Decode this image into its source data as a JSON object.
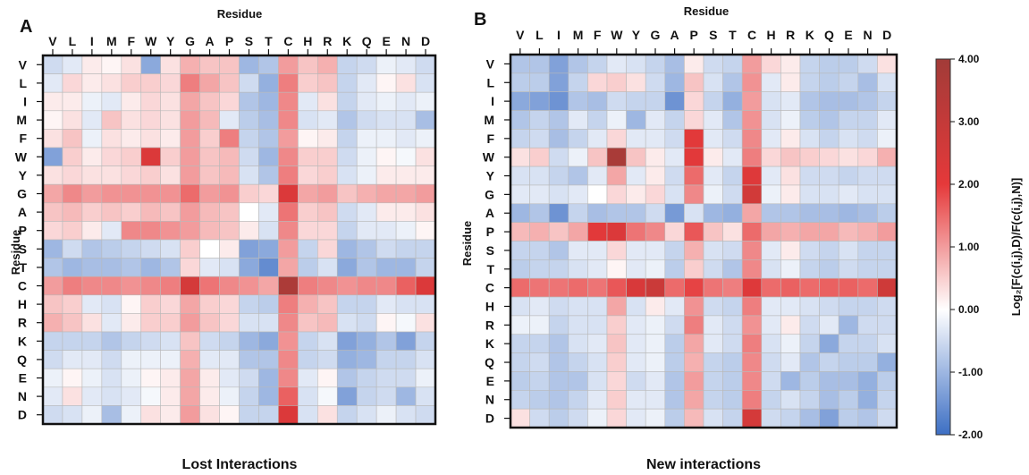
{
  "chart_data": [
    {
      "type": "heatmap",
      "panel_letter": "A",
      "title": "Lost Interactions",
      "xlabel": "Residue",
      "ylabel": "Residue",
      "residues": [
        "V",
        "L",
        "I",
        "M",
        "F",
        "W",
        "Y",
        "G",
        "A",
        "P",
        "S",
        "T",
        "C",
        "H",
        "R",
        "K",
        "Q",
        "E",
        "N",
        "D"
      ],
      "values": [
        [
          -0.5,
          -0.3,
          0.2,
          0.1,
          0.3,
          -1.2,
          0.3,
          0.8,
          0.6,
          0.6,
          -1.0,
          -0.8,
          1.0,
          0.6,
          0.8,
          -0.6,
          -0.5,
          -0.2,
          -0.3,
          -0.5
        ],
        [
          -0.3,
          0.4,
          0.2,
          0.3,
          0.5,
          0.5,
          0.4,
          1.3,
          0.9,
          0.6,
          -0.5,
          -1.1,
          1.3,
          0.5,
          0.6,
          -0.6,
          -0.3,
          0.1,
          0.3,
          -0.4
        ],
        [
          0.2,
          0.2,
          -0.2,
          -0.3,
          0.2,
          0.4,
          0.3,
          0.9,
          0.6,
          0.4,
          -0.8,
          -1.0,
          1.2,
          -0.3,
          0.3,
          -0.6,
          -0.3,
          -0.2,
          -0.3,
          -0.2
        ],
        [
          0.1,
          0.3,
          -0.3,
          0.6,
          0.3,
          0.4,
          0.3,
          1.0,
          0.7,
          -0.3,
          -0.7,
          -0.9,
          1.2,
          -0.4,
          -0.3,
          -0.8,
          -0.5,
          -0.4,
          -0.4,
          -0.9
        ],
        [
          0.3,
          0.6,
          -0.2,
          0.3,
          0.2,
          0.3,
          0.2,
          1.0,
          0.5,
          1.3,
          -0.6,
          -0.8,
          1.0,
          0.1,
          0.2,
          -0.6,
          -0.2,
          -0.2,
          -0.3,
          -0.2
        ],
        [
          -1.3,
          0.5,
          0.2,
          0.4,
          0.5,
          2.3,
          0.5,
          1.0,
          0.6,
          0.7,
          -0.5,
          -1.0,
          1.2,
          0.5,
          0.5,
          -0.5,
          -0.2,
          0.1,
          -0.1,
          0.3
        ],
        [
          0.3,
          0.4,
          0.3,
          0.3,
          0.4,
          0.5,
          0.3,
          1.0,
          0.6,
          0.7,
          -0.4,
          -0.8,
          1.3,
          0.4,
          0.5,
          -0.4,
          -0.2,
          0.2,
          0.2,
          0.2
        ],
        [
          0.9,
          1.2,
          1.0,
          1.1,
          1.1,
          1.1,
          1.1,
          1.5,
          1.0,
          1.1,
          0.5,
          0.4,
          2.3,
          0.9,
          1.0,
          0.6,
          0.8,
          0.9,
          0.9,
          1.0
        ],
        [
          0.6,
          0.7,
          0.5,
          0.6,
          0.5,
          0.7,
          0.6,
          1.0,
          0.7,
          0.6,
          0.0,
          -0.3,
          1.4,
          0.5,
          0.6,
          -0.5,
          -0.3,
          0.2,
          0.2,
          0.3
        ],
        [
          0.4,
          0.5,
          0.2,
          -0.3,
          1.2,
          1.2,
          1.1,
          1.0,
          0.7,
          0.6,
          0.2,
          -0.4,
          1.2,
          0.4,
          0.4,
          -0.6,
          -0.3,
          -0.3,
          -0.2,
          0.1
        ],
        [
          -1.0,
          -0.5,
          -0.8,
          -0.7,
          -0.6,
          -0.5,
          -0.4,
          0.5,
          0.0,
          0.2,
          -1.3,
          -1.2,
          1.0,
          -0.6,
          0.4,
          -1.0,
          -0.8,
          -0.5,
          -0.6,
          -0.6
        ],
        [
          -0.8,
          -1.0,
          -0.9,
          -0.9,
          -0.8,
          -1.0,
          -0.8,
          0.4,
          -0.3,
          -0.4,
          -1.2,
          -1.6,
          0.9,
          -0.7,
          -0.4,
          -1.2,
          -0.8,
          -1.0,
          -1.0,
          -0.6
        ],
        [
          1.0,
          1.3,
          1.2,
          1.2,
          1.1,
          1.2,
          1.3,
          2.5,
          1.4,
          1.2,
          1.1,
          0.9,
          3.7,
          1.3,
          1.2,
          1.1,
          1.2,
          1.2,
          1.6,
          2.3
        ],
        [
          0.6,
          0.5,
          -0.3,
          -0.4,
          0.1,
          0.5,
          0.4,
          0.9,
          0.5,
          0.4,
          -0.6,
          -0.7,
          1.3,
          0.8,
          0.6,
          -0.6,
          -0.6,
          -0.3,
          -0.4,
          -0.4
        ],
        [
          0.8,
          0.6,
          0.3,
          -0.3,
          0.2,
          0.5,
          0.5,
          1.0,
          0.6,
          0.4,
          -0.4,
          -0.4,
          1.2,
          0.6,
          0.7,
          -0.4,
          -0.5,
          0.1,
          -0.1,
          0.3
        ],
        [
          -0.6,
          -0.6,
          -0.6,
          -0.8,
          -0.6,
          -0.5,
          -0.4,
          0.6,
          -0.5,
          -0.6,
          -1.0,
          -1.2,
          1.1,
          -0.6,
          -0.4,
          -1.3,
          -1.1,
          -0.8,
          -1.3,
          -0.6
        ],
        [
          -0.5,
          -0.3,
          -0.3,
          -0.5,
          -0.2,
          -0.2,
          -0.2,
          0.8,
          -0.3,
          -0.3,
          -0.8,
          -0.8,
          1.2,
          -0.6,
          -0.5,
          -1.1,
          -1.0,
          -0.6,
          -0.6,
          -0.4
        ],
        [
          -0.2,
          0.1,
          -0.2,
          -0.4,
          -0.2,
          0.1,
          0.2,
          0.9,
          0.2,
          -0.3,
          -0.5,
          -1.0,
          1.2,
          -0.3,
          0.1,
          -0.8,
          -0.6,
          -0.5,
          -0.5,
          -0.2
        ],
        [
          -0.3,
          0.3,
          -0.3,
          -0.4,
          -0.3,
          -0.1,
          0.2,
          0.9,
          0.2,
          -0.2,
          -0.6,
          -1.0,
          1.6,
          -0.4,
          -0.1,
          -1.3,
          -0.6,
          -0.5,
          -1.0,
          -0.4
        ],
        [
          -0.5,
          -0.4,
          -0.2,
          -0.9,
          -0.2,
          0.3,
          0.2,
          1.0,
          0.3,
          0.1,
          -0.6,
          -0.6,
          2.3,
          -0.4,
          0.3,
          -0.6,
          -0.4,
          -0.2,
          -0.4,
          -0.5
        ]
      ]
    },
    {
      "type": "heatmap",
      "panel_letter": "B",
      "title": "New interactions",
      "xlabel": "Residue",
      "ylabel": "Residue",
      "residues": [
        "V",
        "L",
        "I",
        "M",
        "F",
        "W",
        "Y",
        "G",
        "A",
        "P",
        "S",
        "T",
        "C",
        "H",
        "R",
        "K",
        "Q",
        "E",
        "N",
        "D"
      ],
      "values": [
        [
          -0.8,
          -0.8,
          -1.3,
          -0.8,
          -0.6,
          -0.3,
          -0.4,
          -0.6,
          -0.9,
          0.2,
          -0.5,
          -0.6,
          1.0,
          0.4,
          0.2,
          -0.6,
          -0.7,
          -0.7,
          -0.5,
          0.3
        ],
        [
          -0.7,
          -0.7,
          -1.3,
          -0.6,
          0.4,
          0.5,
          0.3,
          -0.5,
          -1.0,
          0.6,
          -0.4,
          -0.8,
          1.1,
          -0.3,
          0.2,
          -0.6,
          -0.7,
          -0.6,
          -0.9,
          -0.4
        ],
        [
          -1.2,
          -1.3,
          -1.5,
          -0.8,
          -0.9,
          -0.5,
          -0.6,
          -0.6,
          -1.5,
          0.4,
          -0.6,
          -1.1,
          1.0,
          -0.4,
          -0.3,
          -0.8,
          -0.9,
          -0.9,
          -0.8,
          -0.6
        ],
        [
          -0.8,
          -0.6,
          -0.8,
          -0.3,
          -0.6,
          -0.2,
          -1.0,
          -0.3,
          -0.6,
          0.4,
          -0.3,
          -0.8,
          1.1,
          -0.4,
          -0.2,
          -0.7,
          -0.8,
          -0.6,
          -0.6,
          -0.3
        ],
        [
          -0.6,
          -0.5,
          -0.9,
          -0.6,
          -0.3,
          0.4,
          -0.3,
          -0.3,
          -0.5,
          2.1,
          -0.3,
          -0.5,
          1.2,
          -0.3,
          0.2,
          -0.4,
          -0.6,
          -0.4,
          -0.5,
          -0.2
        ],
        [
          0.3,
          0.5,
          -0.5,
          -0.2,
          0.6,
          3.8,
          0.6,
          0.2,
          -0.3,
          2.1,
          0.2,
          -0.3,
          1.3,
          0.4,
          0.6,
          0.5,
          0.4,
          0.3,
          0.4,
          0.8
        ],
        [
          -0.4,
          -0.4,
          -0.6,
          -0.8,
          -0.3,
          0.9,
          -0.3,
          0.2,
          -0.5,
          1.5,
          -0.3,
          -0.6,
          2.2,
          -0.3,
          0.3,
          -0.5,
          -0.5,
          -0.6,
          -0.5,
          -0.5
        ],
        [
          -0.3,
          -0.3,
          -0.4,
          -0.3,
          0.0,
          0.4,
          0.2,
          0.4,
          -0.4,
          1.2,
          -0.2,
          -0.5,
          2.6,
          -0.2,
          0.2,
          -0.4,
          -0.4,
          -0.3,
          -0.4,
          -0.4
        ],
        [
          -1.0,
          -0.8,
          -1.5,
          -0.6,
          -0.9,
          -0.8,
          -0.8,
          -0.5,
          -1.4,
          -0.4,
          -1.0,
          -1.1,
          0.9,
          -0.8,
          -0.8,
          -0.9,
          -0.9,
          -1.0,
          -0.9,
          -0.7
        ],
        [
          0.7,
          0.8,
          0.6,
          0.9,
          2.1,
          2.3,
          1.4,
          1.2,
          0.4,
          1.7,
          0.6,
          0.3,
          1.5,
          0.9,
          0.8,
          0.9,
          0.9,
          0.7,
          0.8,
          1.0
        ],
        [
          -0.6,
          -0.6,
          -0.8,
          -0.3,
          -0.3,
          0.4,
          -0.3,
          -0.3,
          -0.6,
          0.8,
          -0.4,
          -0.5,
          1.2,
          -0.3,
          0.2,
          -0.5,
          -0.6,
          -0.4,
          -0.6,
          -0.6
        ],
        [
          -0.7,
          -0.6,
          -0.6,
          -0.4,
          -0.3,
          0.1,
          -0.3,
          -0.2,
          -0.7,
          0.5,
          -0.5,
          -0.8,
          1.2,
          -0.4,
          -0.2,
          -0.6,
          -0.7,
          -0.5,
          -0.6,
          -0.6
        ],
        [
          1.5,
          1.4,
          1.4,
          1.5,
          1.4,
          1.7,
          2.4,
          2.8,
          1.5,
          1.9,
          1.4,
          1.3,
          2.2,
          1.5,
          1.6,
          1.5,
          1.6,
          1.6,
          1.5,
          2.7
        ],
        [
          -0.4,
          -0.3,
          -0.5,
          -0.4,
          -0.4,
          0.9,
          -0.4,
          0.2,
          -0.3,
          1.1,
          -0.5,
          -0.6,
          1.3,
          -0.3,
          -0.3,
          -0.4,
          -0.5,
          -0.6,
          -0.6,
          -0.5
        ],
        [
          -0.2,
          -0.2,
          -0.6,
          -0.4,
          -0.4,
          0.5,
          -0.3,
          -0.2,
          -0.5,
          1.3,
          -0.3,
          -0.5,
          1.1,
          -0.3,
          0.2,
          -0.5,
          -0.3,
          -1.0,
          -0.5,
          -0.5
        ],
        [
          -0.6,
          -0.6,
          -0.8,
          -0.4,
          -0.3,
          0.6,
          -0.3,
          -0.2,
          -0.7,
          0.9,
          -0.3,
          -0.5,
          1.3,
          -0.4,
          -0.2,
          -0.6,
          -1.2,
          -0.6,
          -0.6,
          -0.4
        ],
        [
          -0.6,
          -0.5,
          -0.8,
          -0.6,
          -0.4,
          0.5,
          -0.3,
          -0.2,
          -0.7,
          0.8,
          -0.6,
          -0.7,
          1.2,
          -0.5,
          -0.3,
          -0.8,
          -0.6,
          -0.7,
          -0.7,
          -1.1
        ],
        [
          -0.7,
          -0.6,
          -0.8,
          -0.8,
          -0.4,
          0.4,
          -0.5,
          -0.3,
          -0.8,
          1.0,
          -0.6,
          -0.7,
          1.2,
          -0.5,
          -1.0,
          -0.7,
          -0.9,
          -0.9,
          -1.1,
          -0.7
        ],
        [
          -0.6,
          -0.7,
          -0.8,
          -0.6,
          -0.3,
          0.5,
          -0.3,
          -0.3,
          -0.8,
          0.9,
          -0.6,
          -0.7,
          1.3,
          -0.6,
          -0.4,
          -0.6,
          -0.9,
          -0.7,
          -1.1,
          -0.6
        ],
        [
          0.3,
          -0.5,
          -0.7,
          -0.5,
          -0.2,
          0.4,
          -0.3,
          -0.2,
          -0.7,
          0.7,
          -0.4,
          -0.6,
          2.5,
          -0.5,
          -0.6,
          -0.9,
          -1.3,
          -0.7,
          -0.8,
          -0.5
        ]
      ]
    }
  ],
  "colorbar": {
    "label": "Log₂[F(c(i,j),D)/F(c(i,j),N)]",
    "min": -2.0,
    "max": 4.0,
    "ticks": [
      "4.00",
      "3.00",
      "2.00",
      "1.00",
      "0.00",
      "-1.00",
      "-2.00"
    ],
    "colors": {
      "low": "#3d6fc4",
      "mid": "#ffffff",
      "high": "#e5393a",
      "max": "#a23b38"
    }
  }
}
